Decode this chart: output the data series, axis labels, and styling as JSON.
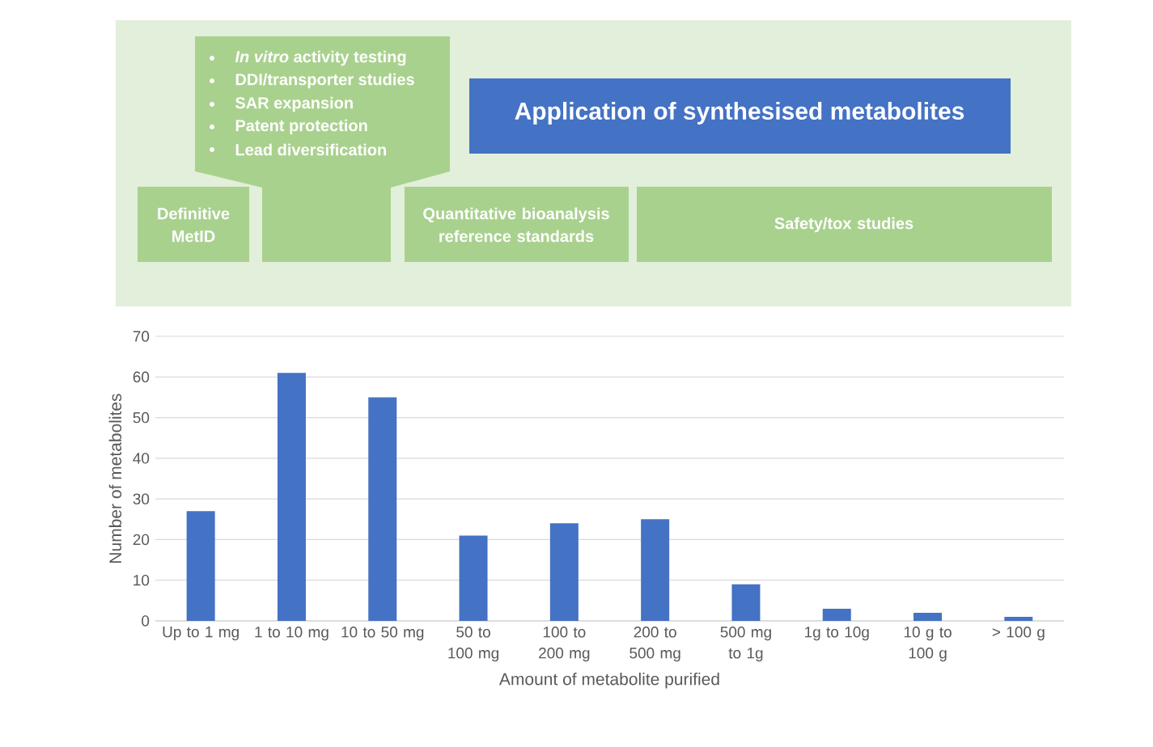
{
  "chart_data": [
    {
      "type": "other",
      "title": "Application of synthesised metabolites",
      "annotations": [
        "*In vitro* activity testing",
        "DDI/transporter studies",
        "SAR expansion",
        "Patent protection",
        "Lead diversification",
        "Definitive MetID",
        "Quantitative bioanalysis reference standards",
        "Safety/tox studies"
      ]
    },
    {
      "type": "bar",
      "categories": [
        "Up to 1 mg",
        "1 to 10 mg",
        "10 to 50 mg",
        "50 to 100 mg",
        "100 to 200 mg",
        "200 to 500 mg",
        "500 mg to 1g",
        "1g to 10g",
        "10 g to 100 g",
        "> 100 g"
      ],
      "values": [
        27,
        61,
        55,
        21,
        24,
        25,
        9,
        3,
        2,
        1
      ],
      "color": "#4472c4",
      "xlabel": "Amount of metabolite purified",
      "ylabel": "Number of metabolites",
      "ylim": [
        0,
        70
      ],
      "yticks": [
        0,
        10,
        20,
        30,
        40,
        50,
        60,
        70
      ],
      "grid": "y"
    }
  ]
}
